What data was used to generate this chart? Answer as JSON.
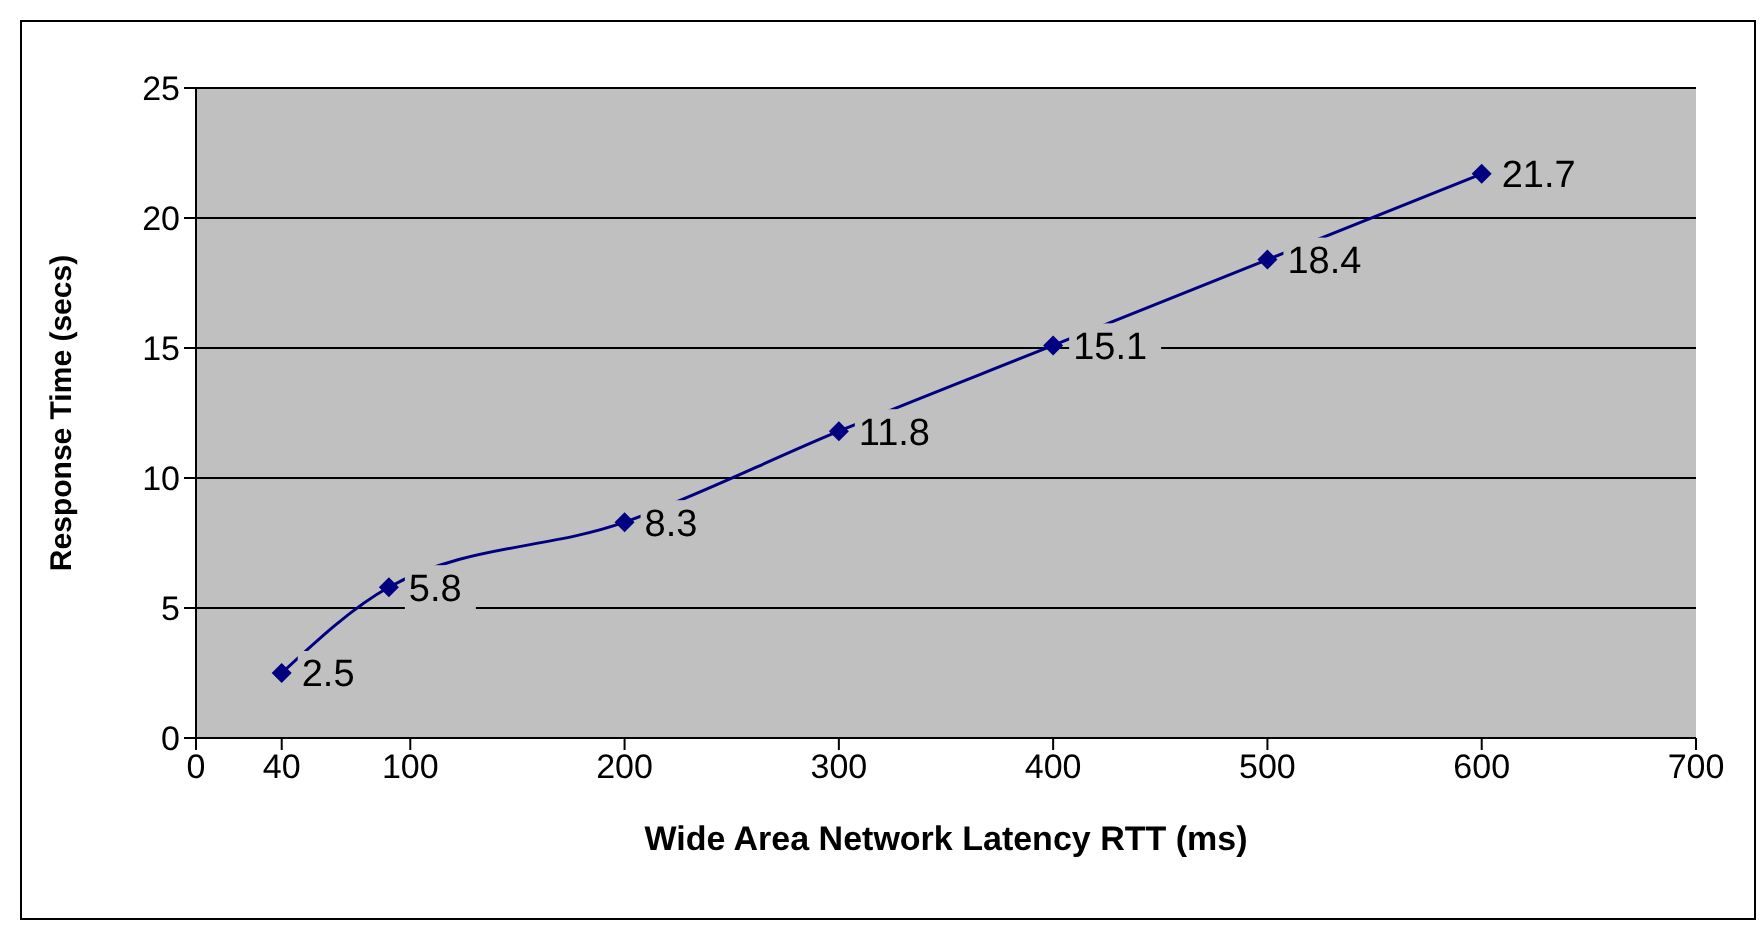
{
  "chart_data": {
    "type": "line",
    "xlabel": "Wide Area Network Latency RTT (ms)",
    "ylabel": "Response Time (secs)",
    "x": [
      40,
      90,
      200,
      300,
      400,
      500,
      600
    ],
    "series": [
      {
        "color": "#000080",
        "values": [
          2.5,
          5.8,
          8.3,
          11.8,
          15.1,
          18.4,
          21.7
        ]
      }
    ],
    "xlim": [
      0,
      700
    ],
    "xticks": [
      0,
      40,
      100,
      200,
      300,
      400,
      500,
      600,
      700
    ],
    "ylim": [
      0,
      25
    ],
    "yticks": [
      0,
      5,
      10,
      15,
      20,
      25
    ],
    "grid": "y",
    "marker": "diamond",
    "data_labels": true
  }
}
